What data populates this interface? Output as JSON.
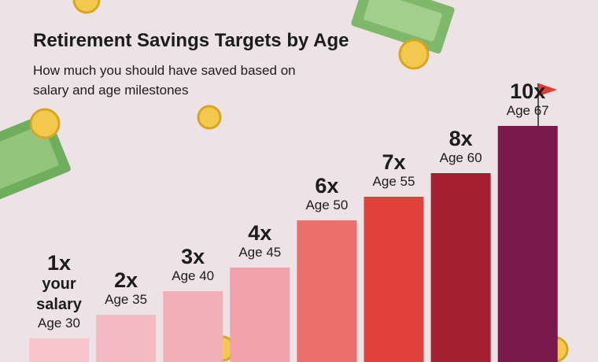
{
  "chart_data": {
    "type": "bar",
    "title": "Retirement Savings Targets by Age",
    "subtitle": "How much you should have saved based on salary and age milestones",
    "categories": [
      "Age 30",
      "Age 35",
      "Age 40",
      "Age 45",
      "Age 50",
      "Age 55",
      "Age 60",
      "Age 67"
    ],
    "values": [
      1,
      2,
      3,
      4,
      6,
      7,
      8,
      10
    ],
    "value_labels": [
      "1x",
      "2x",
      "3x",
      "4x",
      "6x",
      "7x",
      "8x",
      "10x"
    ],
    "first_bar_note": "your salary",
    "colors": [
      "#f6c6cc",
      "#f4bac2",
      "#f2afb8",
      "#f0a1ab",
      "#eb6e6d",
      "#e1403b",
      "#a41f30",
      "#7a1a4b"
    ],
    "ylim": [
      0,
      10
    ]
  }
}
